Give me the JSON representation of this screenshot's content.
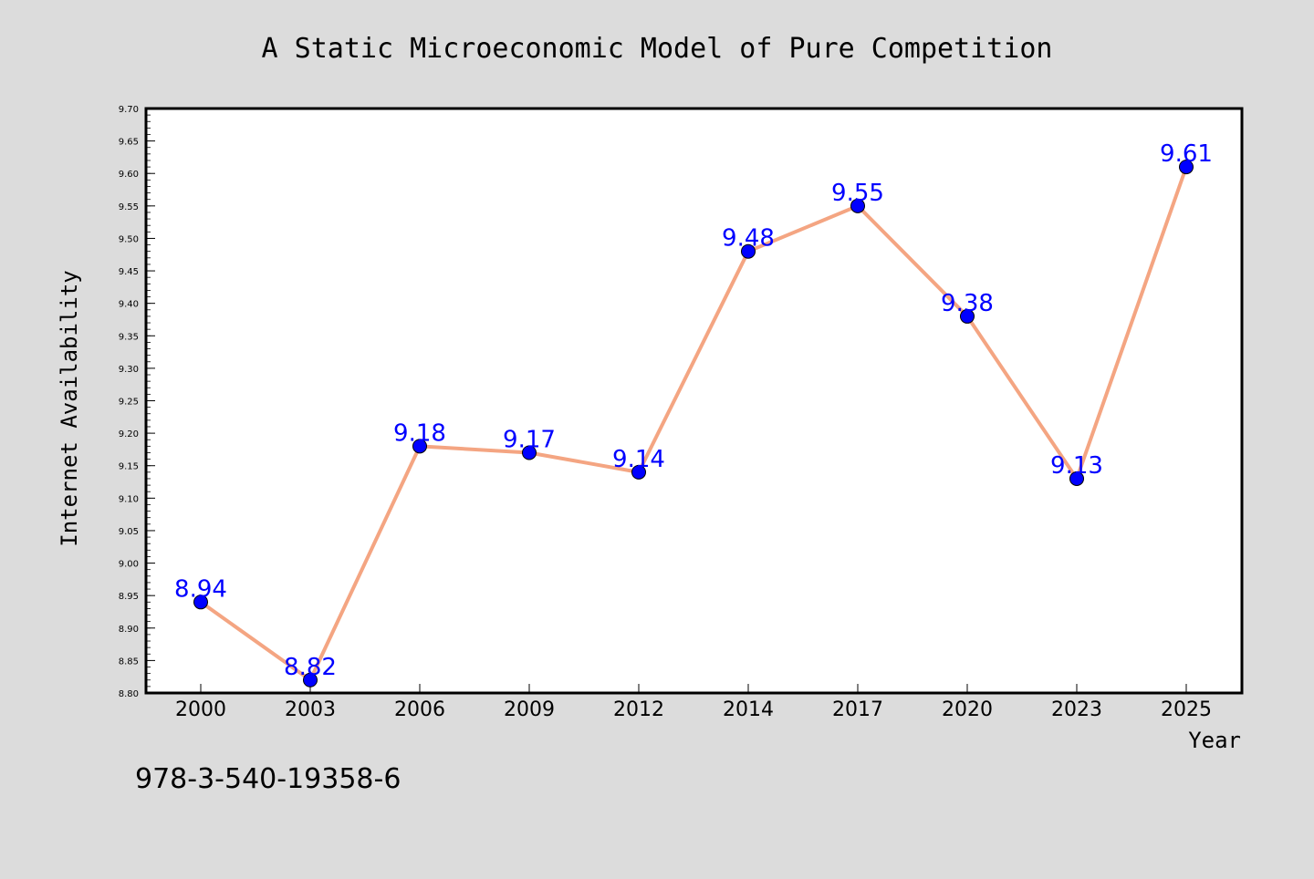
{
  "chart_data": {
    "type": "line",
    "title": "A Static Microeconomic Model of Pure Competition",
    "xlabel": "Year",
    "ylabel": "Internet Availability",
    "categories": [
      "2000",
      "2003",
      "2006",
      "2009",
      "2012",
      "2014",
      "2017",
      "2020",
      "2023",
      "2025"
    ],
    "series": [
      {
        "values": [
          8.94,
          8.82,
          9.18,
          9.17,
          9.14,
          9.48,
          9.55,
          9.38,
          9.13,
          9.61
        ],
        "labels": [
          "8.94",
          "8.82",
          "9.18",
          "9.17",
          "9.14",
          "9.48",
          "9.55",
          "9.38",
          "9.13",
          "9.61"
        ],
        "line_color": "#f4a582",
        "marker_color": "#0000ff",
        "label_color": "#0000ff"
      }
    ],
    "ylim": [
      8.8,
      9.7
    ],
    "yticks": [
      "8.80",
      "8.85",
      "8.90",
      "8.95",
      "9.00",
      "9.05",
      "9.10",
      "9.15",
      "9.20",
      "9.25",
      "9.30",
      "9.35",
      "9.40",
      "9.45",
      "9.50",
      "9.55",
      "9.60",
      "9.65",
      "9.70"
    ],
    "grid": false,
    "legend": "none",
    "background_color": "#dcdcdc",
    "plot_background_color": "#ffffff"
  },
  "footnote": "978-3-540-19358-6"
}
